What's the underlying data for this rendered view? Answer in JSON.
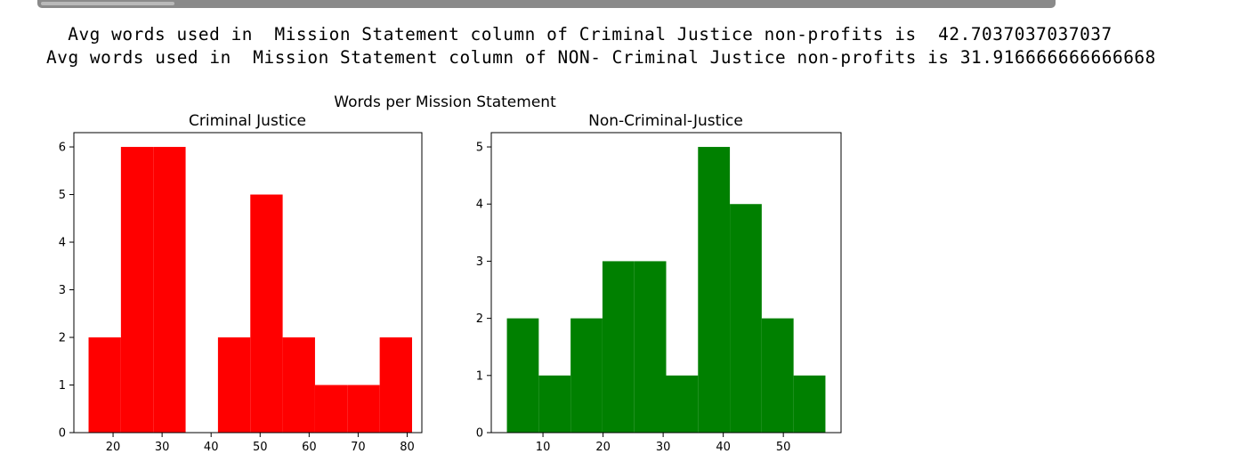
{
  "output": {
    "line1": " Avg words used in  Mission Statement column of Criminal Justice non-profits is  42.7037037037037",
    "line2": "Avg words used in  Mission Statement column of NON- Criminal Justice non-profits is 31.916666666666668"
  },
  "colors": {
    "left": "#ff0000",
    "right": "#008000",
    "axes": "#000000"
  },
  "chart_data": [
    {
      "type": "bar",
      "suptitle": "Words per Mission Statement",
      "title": "Criminal Justice",
      "xlabel": "",
      "ylabel": "",
      "xlim": [
        12,
        83
      ],
      "ylim": [
        0,
        6.3
      ],
      "xticks": [
        20,
        30,
        40,
        50,
        60,
        70,
        80
      ],
      "yticks": [
        0,
        1,
        2,
        3,
        4,
        5,
        6
      ],
      "grid": false,
      "bins": [
        {
          "x0": 15.0,
          "x1": 21.6,
          "value": 2
        },
        {
          "x0": 21.6,
          "x1": 28.2,
          "value": 6
        },
        {
          "x0": 28.2,
          "x1": 34.8,
          "value": 6
        },
        {
          "x0": 34.8,
          "x1": 41.4,
          "value": 0
        },
        {
          "x0": 41.4,
          "x1": 48.0,
          "value": 2
        },
        {
          "x0": 48.0,
          "x1": 54.6,
          "value": 5
        },
        {
          "x0": 54.6,
          "x1": 61.2,
          "value": 2
        },
        {
          "x0": 61.2,
          "x1": 67.8,
          "value": 1
        },
        {
          "x0": 67.8,
          "x1": 74.4,
          "value": 1
        },
        {
          "x0": 74.4,
          "x1": 81.0,
          "value": 2
        }
      ]
    },
    {
      "type": "bar",
      "title": "Non-Criminal-Justice",
      "xlabel": "",
      "ylabel": "",
      "xlim": [
        1.4,
        59.6
      ],
      "ylim": [
        0,
        5.25
      ],
      "xticks": [
        10,
        20,
        30,
        40,
        50
      ],
      "yticks": [
        0,
        1,
        2,
        3,
        4,
        5
      ],
      "grid": false,
      "bins": [
        {
          "x0": 4.0,
          "x1": 9.3,
          "value": 2
        },
        {
          "x0": 9.3,
          "x1": 14.6,
          "value": 1
        },
        {
          "x0": 14.6,
          "x1": 19.9,
          "value": 2
        },
        {
          "x0": 19.9,
          "x1": 25.2,
          "value": 3
        },
        {
          "x0": 25.2,
          "x1": 30.5,
          "value": 3
        },
        {
          "x0": 30.5,
          "x1": 35.8,
          "value": 1
        },
        {
          "x0": 35.8,
          "x1": 41.1,
          "value": 5
        },
        {
          "x0": 41.1,
          "x1": 46.4,
          "value": 4
        },
        {
          "x0": 46.4,
          "x1": 51.7,
          "value": 2
        },
        {
          "x0": 51.7,
          "x1": 57.0,
          "value": 1
        }
      ]
    }
  ]
}
